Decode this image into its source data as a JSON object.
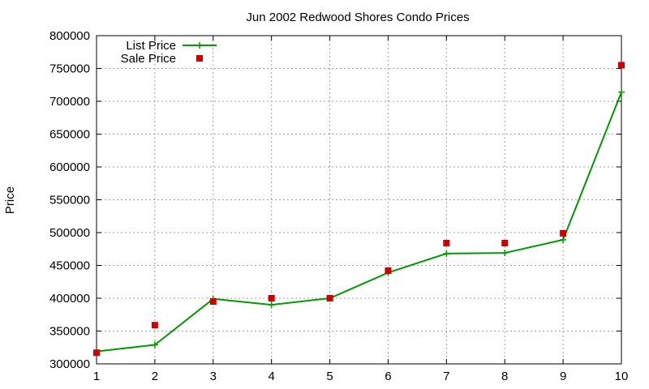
{
  "chart_data": {
    "type": "line",
    "title": "Jun 2002 Redwood Shores Condo Prices",
    "xlabel": "",
    "ylabel": "Price",
    "xlim": [
      1,
      10
    ],
    "ylim": [
      300000,
      800000
    ],
    "xticks": [
      1,
      2,
      3,
      4,
      5,
      6,
      7,
      8,
      9,
      10
    ],
    "yticks": [
      300000,
      350000,
      400000,
      450000,
      500000,
      550000,
      600000,
      650000,
      700000,
      750000,
      800000
    ],
    "grid": true,
    "legend_position": "top-left",
    "series": [
      {
        "name": "List Price",
        "style": "line+cross",
        "color": "#009900",
        "x": [
          1,
          2,
          3,
          4,
          5,
          6,
          7,
          8,
          9,
          10
        ],
        "y": [
          319000,
          329000,
          399000,
          390000,
          400000,
          439000,
          468000,
          469000,
          489000,
          714000
        ]
      },
      {
        "name": "Sale Price",
        "style": "square-marker",
        "color": "#cc0000",
        "x": [
          1,
          2,
          3,
          4,
          5,
          6,
          7,
          8,
          9,
          10
        ],
        "y": [
          317000,
          359000,
          395000,
          400000,
          400000,
          442000,
          484000,
          484000,
          499000,
          755000
        ]
      }
    ]
  }
}
